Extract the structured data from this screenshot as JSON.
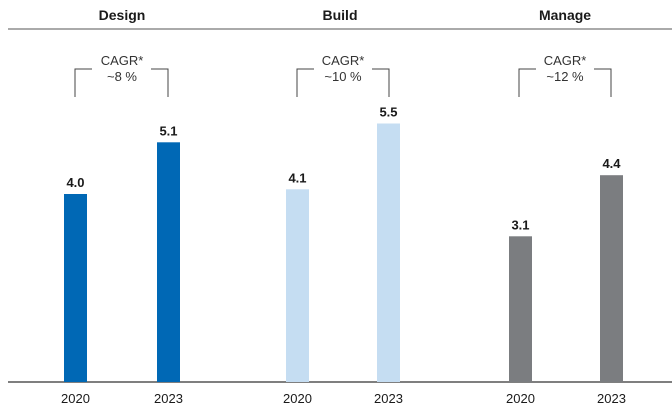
{
  "chart_data": {
    "type": "bar",
    "ylim": [
      0,
      6
    ],
    "grid": false,
    "categories": [
      "2020",
      "2023"
    ],
    "panels": [
      {
        "title": "Design",
        "cagr_label": "CAGR*",
        "cagr_value": "~8 %",
        "color": "#0068B5",
        "values": [
          4.0,
          5.1
        ],
        "value_labels": [
          "4.0",
          "5.1"
        ]
      },
      {
        "title": "Build",
        "cagr_label": "CAGR*",
        "cagr_value": "~10 %",
        "color": "#C5DDF2",
        "values": [
          4.1,
          5.5
        ],
        "value_labels": [
          "4.1",
          "5.5"
        ]
      },
      {
        "title": "Manage",
        "cagr_label": "CAGR*",
        "cagr_value": "~12 %",
        "color": "#7B7D80",
        "values": [
          3.1,
          4.4
        ],
        "value_labels": [
          "3.1",
          "4.4"
        ]
      }
    ]
  }
}
